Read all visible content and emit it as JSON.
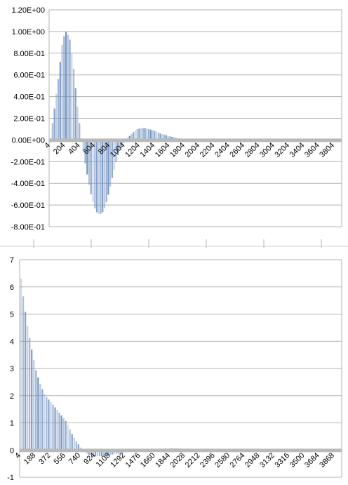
{
  "chart_data": [
    {
      "type": "bar",
      "x_start": 4,
      "x_end": 3804,
      "xticks": [
        "4",
        "204",
        "404",
        "604",
        "804",
        "1004",
        "1204",
        "1404",
        "1604",
        "1804",
        "2004",
        "2204",
        "2404",
        "2604",
        "2804",
        "3004",
        "3204",
        "3404",
        "3604",
        "3804"
      ],
      "yticks": [
        "1.20E+00",
        "1.00E+00",
        "8.00E-01",
        "6.00E-01",
        "4.00E-01",
        "2.00E-01",
        "0.00E+00",
        "-2.00E-01",
        "-4.00E-01",
        "-6.00E-01",
        "-8.00E-01"
      ],
      "ylim": [
        -0.8,
        1.2
      ],
      "grid": true,
      "colors": {
        "bar": "#6f8fbf",
        "axis_band": "#b9b9b9",
        "grid": "#b3b3b3"
      },
      "series": [
        {
          "x": [
            4,
            104,
            164,
            204,
            254,
            304,
            354,
            404,
            454,
            504,
            554,
            604,
            654,
            704,
            754,
            804,
            854,
            904,
            954,
            1004,
            1054,
            1104,
            1154,
            1204,
            1254,
            1304,
            1354,
            1404,
            1454,
            1504,
            1554,
            1604,
            1654,
            1704,
            1754,
            1804,
            1854,
            1904,
            1954,
            2004,
            2104,
            2204,
            2404,
            2604,
            2804,
            3004,
            3204,
            3404,
            3604,
            3804
          ],
          "y": [
            0.02,
            0.55,
            0.92,
            1.0,
            0.95,
            0.7,
            0.35,
            0.05,
            -0.18,
            -0.38,
            -0.55,
            -0.66,
            -0.69,
            -0.66,
            -0.55,
            -0.4,
            -0.25,
            -0.12,
            -0.04,
            0.0,
            0.04,
            0.075,
            0.1,
            0.11,
            0.11,
            0.1,
            0.09,
            0.08,
            0.06,
            0.05,
            0.04,
            0.03,
            0.02,
            0.015,
            0.01,
            0.006,
            0.004,
            0.003,
            0.002,
            0.001,
            0.0,
            0.0,
            0.0,
            0.0,
            0.0,
            0.0,
            0.0,
            0.0,
            0.0,
            0.0
          ]
        }
      ]
    },
    {
      "type": "bar",
      "x_start": 4,
      "x_end": 3868,
      "xticks": [
        "4",
        "188",
        "372",
        "556",
        "740",
        "924",
        "1108",
        "1292",
        "1476",
        "1660",
        "1844",
        "2028",
        "2212",
        "2396",
        "2580",
        "2764",
        "2948",
        "3132",
        "3316",
        "3500",
        "3684",
        "3868"
      ],
      "yticks": [
        "7",
        "6",
        "5",
        "4",
        "3",
        "2",
        "1",
        "0",
        "-1"
      ],
      "ylim": [
        -1,
        7
      ],
      "grid": true,
      "colors": {
        "bar": "#6f8fbf",
        "axis_band": "#b9b9b9",
        "grid": "#b3b3b3"
      },
      "series": [
        {
          "x": [
            4,
            40,
            80,
            120,
            160,
            188,
            240,
            300,
            372,
            450,
            556,
            640,
            740,
            830,
            924,
            1020,
            1108,
            1200,
            1292,
            1380,
            1476,
            1560,
            1660,
            1750,
            1844,
            1940,
            2028,
            2120,
            2212,
            2300,
            2396,
            2500,
            2580,
            2764,
            2948,
            3132,
            3316,
            3500,
            3684,
            3868
          ],
          "y": [
            6.3,
            5.4,
            4.6,
            3.9,
            3.3,
            2.9,
            2.4,
            2.0,
            1.75,
            1.45,
            1.05,
            0.5,
            0.05,
            -0.18,
            -0.24,
            -0.22,
            -0.17,
            -0.12,
            -0.07,
            -0.03,
            0.0,
            0.03,
            0.05,
            0.06,
            0.065,
            0.06,
            0.05,
            0.04,
            0.03,
            0.02,
            0.012,
            0.006,
            0.003,
            0.0,
            0.0,
            0.0,
            0.0,
            0.0,
            0.0,
            0.0
          ]
        }
      ]
    }
  ]
}
